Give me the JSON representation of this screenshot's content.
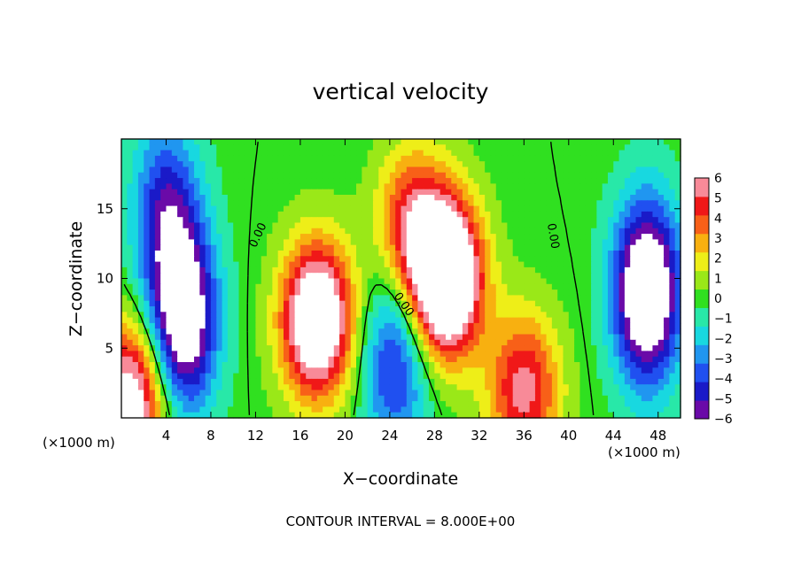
{
  "chart_data": {
    "type": "heatmap",
    "title": "vertical velocity",
    "xlabel": "X−coordinate",
    "ylabel": "Z−coordinate",
    "x_unit_note": "(×1000 m)",
    "x_unit_note_right": "(×1000 m)",
    "footer": "CONTOUR INTERVAL = 8.000E+00",
    "xlim": [
      0,
      50
    ],
    "ylim": [
      0,
      20
    ],
    "x_ticks": [
      "4",
      "8",
      "12",
      "16",
      "20",
      "24",
      "28",
      "32",
      "36",
      "40",
      "44",
      "48"
    ],
    "y_ticks": [
      "5",
      "10",
      "15"
    ],
    "colorbar_labels": [
      "6",
      "5",
      "4",
      "3",
      "2",
      "1",
      "0",
      "−1",
      "−2",
      "−3",
      "−4",
      "−5",
      "−6"
    ],
    "value_range": [
      -6,
      6
    ],
    "contour_labels": [
      "0.00",
      "0.00",
      "0.00"
    ],
    "features": [
      {
        "sign": "negative",
        "x": 5.5,
        "z": 7,
        "amplitude": -9
      },
      {
        "sign": "positive",
        "x": 1.0,
        "z": 1.5,
        "amplitude": 8
      },
      {
        "sign": "positive",
        "x": 17.5,
        "z": 7,
        "amplitude": 10
      },
      {
        "sign": "positive",
        "x": 29.0,
        "z": 10,
        "amplitude": 12
      },
      {
        "sign": "positive",
        "x": 26.0,
        "z": 14,
        "amplitude": 5
      },
      {
        "sign": "positive",
        "x": 36.0,
        "z": 2,
        "amplitude": 6
      },
      {
        "sign": "negative",
        "x": 47.0,
        "z": 9,
        "amplitude": -10
      },
      {
        "sign": "negative",
        "x": 4.0,
        "z": 15,
        "amplitude": -5
      },
      {
        "sign": "negative",
        "x": 24.5,
        "z": 4,
        "amplitude": -5
      }
    ]
  }
}
